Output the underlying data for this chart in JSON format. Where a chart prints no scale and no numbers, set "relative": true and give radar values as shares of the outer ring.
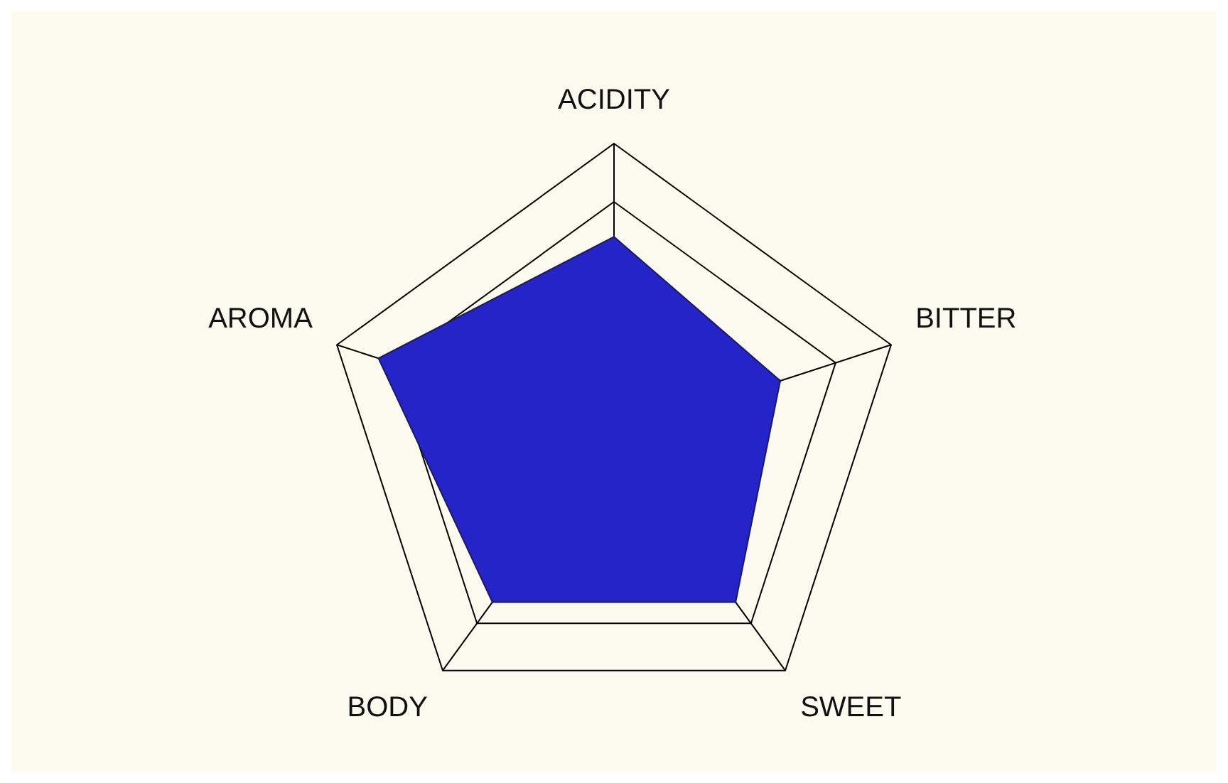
{
  "chart_data": {
    "type": "radar",
    "relative": true,
    "grid": true,
    "categories": [
      "ACIDITY",
      "BITTER",
      "SWEET",
      "BODY",
      "AROMA"
    ],
    "series": [
      {
        "color": "#2424c8",
        "values": [
          0.68,
          0.6,
          0.71,
          0.71,
          0.85
        ]
      }
    ]
  }
}
